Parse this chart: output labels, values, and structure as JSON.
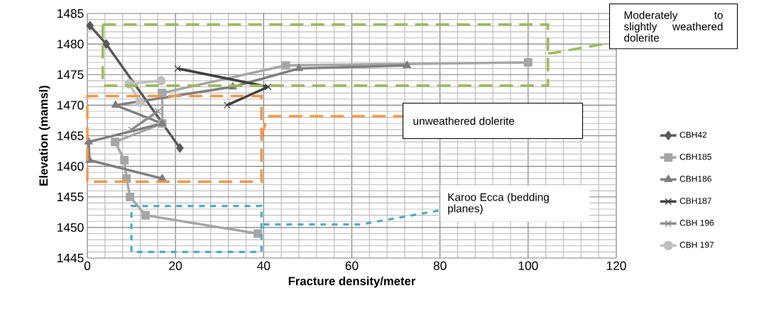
{
  "chart_data": {
    "type": "line",
    "xlabel": "Fracture density/meter",
    "ylabel": "Elevation (mamsl)",
    "xlim": [
      0,
      120
    ],
    "ylim": [
      1445,
      1485
    ],
    "xticks": [
      0,
      20,
      40,
      60,
      80,
      100,
      120
    ],
    "yticks": [
      1445,
      1450,
      1455,
      1460,
      1465,
      1470,
      1475,
      1480,
      1485
    ],
    "grid": true,
    "legend": "right",
    "annotations": [
      "Moderately to slightly weathered dolerite",
      "unweathered dolerite",
      "Karoo Ecca (bedding planes)"
    ],
    "series": [
      {
        "name": "CBH42",
        "color": "#595959",
        "marker": "diamond",
        "x": [
          0.6,
          4.3,
          21
        ],
        "values": [
          1483,
          1480,
          1463
        ]
      },
      {
        "name": "CBH185",
        "color": "#a6a6a6",
        "marker": "square",
        "x": [
          100,
          45,
          17,
          17,
          6.3,
          8.4,
          8.9,
          9.7,
          13.2,
          38.7
        ],
        "values": [
          1477,
          1476.5,
          1472,
          1467,
          1464,
          1461,
          1458,
          1455,
          1452,
          1449
        ]
      },
      {
        "name": "CBH186",
        "color": "#7f7f7f",
        "marker": "triangle",
        "x": [
          72.5,
          48,
          33,
          6.4,
          17,
          0.3,
          0.5,
          17
        ],
        "values": [
          1476.5,
          1476,
          1473,
          1470,
          1467,
          1464,
          1461,
          1458
        ]
      },
      {
        "name": "CBH187",
        "color": "#404040",
        "marker": "cross",
        "x": [
          20.5,
          41,
          31.7
        ],
        "values": [
          1476,
          1473,
          1470
        ]
      },
      {
        "name": "CBH 196",
        "color": "#8c8c8c",
        "marker": "cross",
        "x": [
          10,
          16
        ],
        "values": [
          1466,
          1469
        ]
      },
      {
        "name": "CBH 197",
        "color": "#bfbfbf",
        "marker": "circle",
        "x": [
          16.7,
          9.5,
          12
        ],
        "values": [
          1474,
          1473.5,
          1470.5
        ]
      }
    ]
  }
}
